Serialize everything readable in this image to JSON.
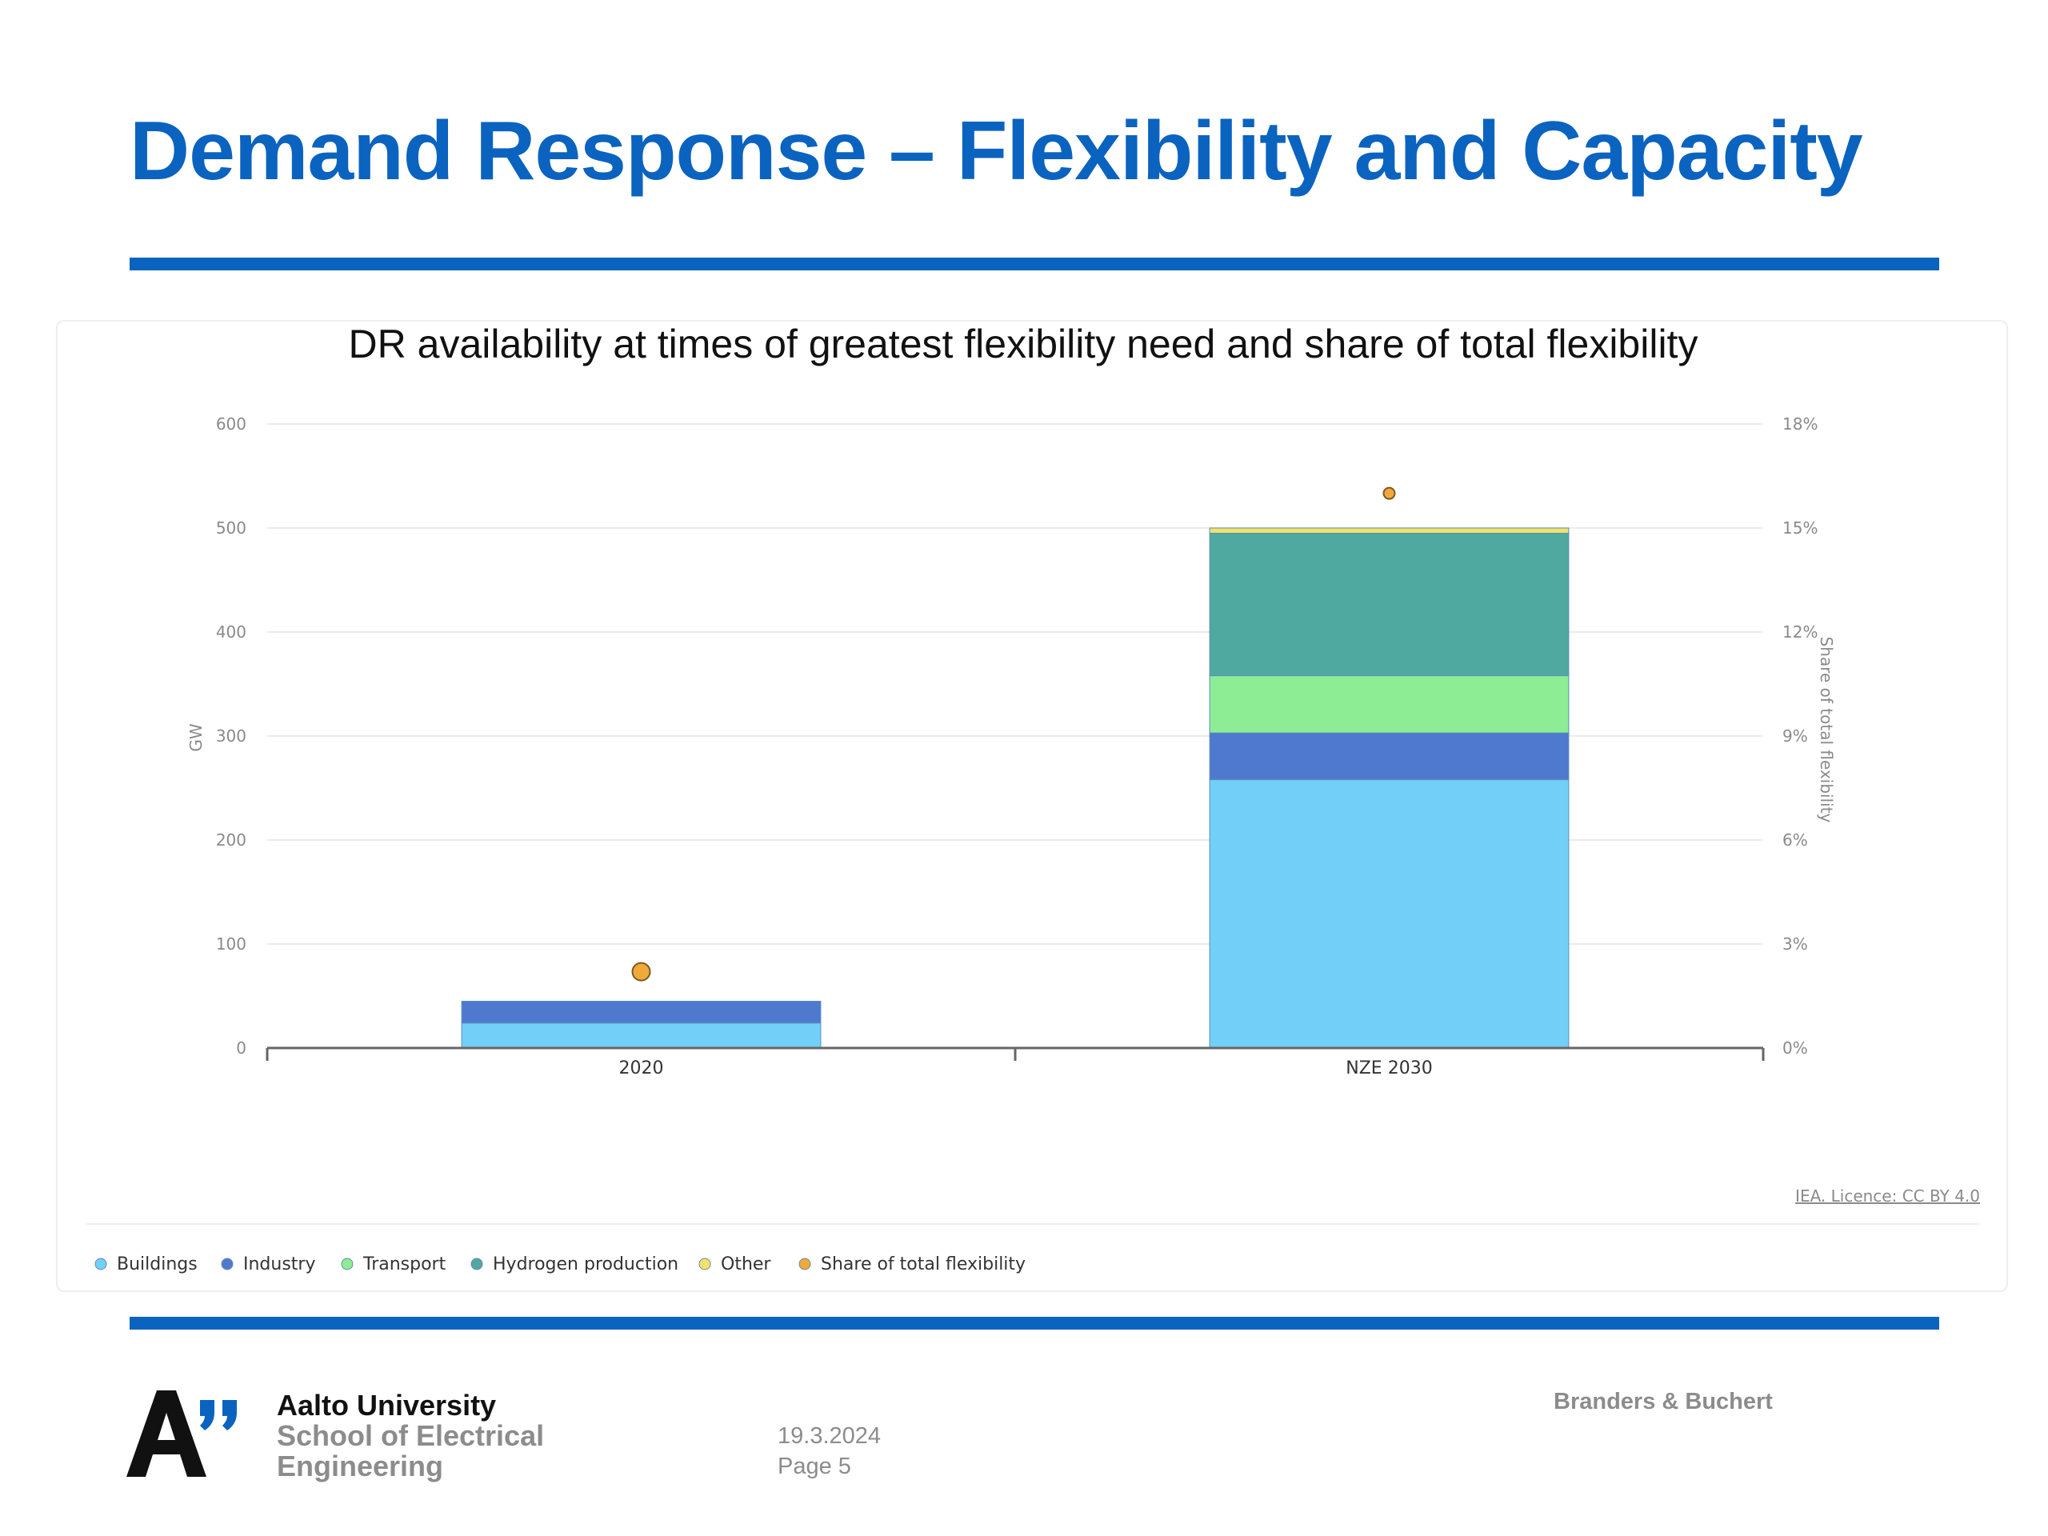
{
  "slide": {
    "title": "Demand Response – Flexibility and Capacity"
  },
  "chart_data": {
    "type": "bar",
    "stacked": true,
    "title": "DR availability at times of greatest flexibility need and share of total flexibility",
    "categories": [
      "2020",
      "NZE 2030"
    ],
    "series": [
      {
        "name": "Buildings",
        "color": "#72cff8",
        "values": [
          24,
          258
        ]
      },
      {
        "name": "Industry",
        "color": "#4f79cf",
        "values": [
          21,
          45
        ]
      },
      {
        "name": "Transport",
        "color": "#8ded95",
        "values": [
          0,
          55
        ]
      },
      {
        "name": "Hydrogen production",
        "color": "#4fa9a0",
        "values": [
          0,
          137
        ]
      },
      {
        "name": "Other",
        "color": "#f0e36b",
        "values": [
          0,
          5
        ]
      }
    ],
    "secondary_series": {
      "name": "Share of total flexibility",
      "color": "#f2a93b",
      "type": "scatter",
      "values": [
        2.2,
        16.0
      ]
    },
    "ylabel": "GW",
    "y2label": "Share of total flexibility",
    "ylim": [
      0,
      600
    ],
    "y2lim": [
      0,
      18
    ],
    "yticks": [
      "0",
      "100",
      "200",
      "300",
      "400",
      "500",
      "600"
    ],
    "y2ticks": [
      "0%",
      "3%",
      "6%",
      "9%",
      "12%",
      "15%",
      "18%"
    ],
    "legend_position": "bottom-left",
    "credit": "IEA. Licence: CC BY 4.0"
  },
  "footer": {
    "org_line1": "Aalto University",
    "org_line2": "School of Electrical",
    "org_line3": "Engineering",
    "date": "19.3.2024",
    "page": "Page 5",
    "authors": "Branders & Buchert"
  }
}
